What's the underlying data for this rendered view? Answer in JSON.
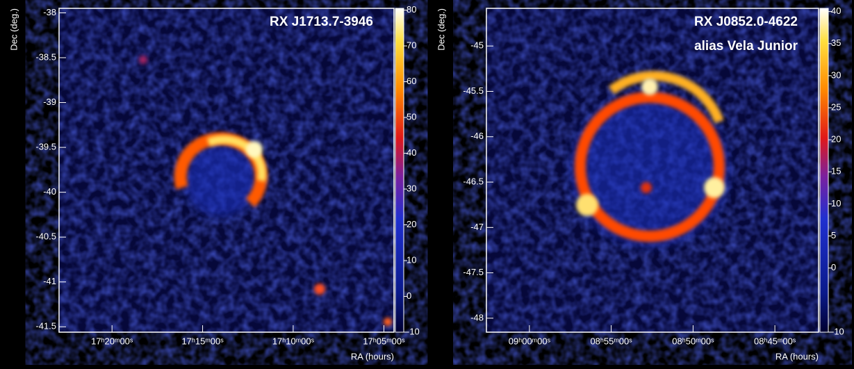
{
  "chart_data": [
    {
      "type": "skymap",
      "title": "RX J1713.7-3946",
      "x_label": "RA (hours)",
      "y_label": "Dec (deg.)",
      "xlim": [
        17.382,
        17.074
      ],
      "ylim": [
        -41.56,
        -37.95
      ],
      "xticks": [
        {
          "value": 17.3333,
          "label": "17ʰ20ᵐ00ˢ"
        },
        {
          "value": 17.25,
          "label": "17ʰ15ᵐ00ˢ"
        },
        {
          "value": 17.1667,
          "label": "17ʰ10ᵐ00ˢ"
        },
        {
          "value": 17.0833,
          "label": "17ʰ05ᵐ00ˢ"
        }
      ],
      "yticks": [
        -38,
        -38.5,
        -39,
        -39.5,
        -40,
        -40.5,
        -41,
        -41.5
      ],
      "clim": [
        -10,
        80.5
      ],
      "cticks": [
        80,
        70,
        60,
        50,
        40,
        30,
        20,
        10,
        0,
        -10
      ]
    },
    {
      "type": "skymap",
      "title": "RX J0852.0-4622",
      "annotation": "alias Vela Junior",
      "x_label": "RA (hours)",
      "y_label": "Dec (deg.)",
      "xlim": [
        9.0438,
        8.7055
      ],
      "ylim": [
        -48.154,
        -44.585
      ],
      "xticks": [
        {
          "value": 9.0,
          "label": "09ʰ00ᵐ00ˢ"
        },
        {
          "value": 8.9167,
          "label": "08ʰ55ᵐ00ˢ"
        },
        {
          "value": 8.8333,
          "label": "08ʰ50ᵐ00ˢ"
        },
        {
          "value": 8.75,
          "label": "08ʰ45ᵐ00ˢ"
        }
      ],
      "yticks": [
        -45,
        -45.5,
        -46,
        -46.5,
        -47,
        -47.5,
        -48
      ],
      "clim": [
        -10,
        40.5
      ],
      "cticks": [
        40,
        35,
        30,
        25,
        20,
        15,
        10,
        5,
        0,
        -10
      ]
    }
  ]
}
